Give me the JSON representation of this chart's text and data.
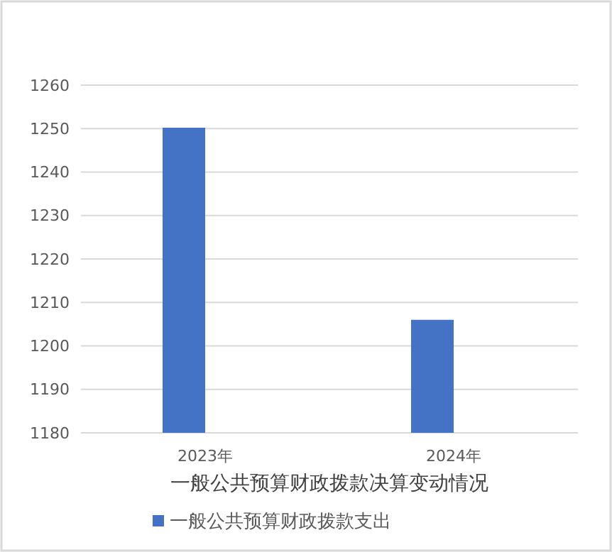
{
  "chart_data": {
    "type": "bar",
    "xlabel": "一般公共预算财政拨款决算变动情况",
    "categories": [
      "2023年",
      "2024年"
    ],
    "series": [
      {
        "name": "一般公共预算财政拨款支出",
        "color": "#4472c4",
        "values": [
          1250.2,
          1206.0
        ]
      }
    ],
    "ylim": [
      1180,
      1260
    ],
    "yticks": [
      1180,
      1190,
      1200,
      1210,
      1220,
      1230,
      1240,
      1250,
      1260
    ],
    "grid": "y",
    "legend": "bottom"
  }
}
